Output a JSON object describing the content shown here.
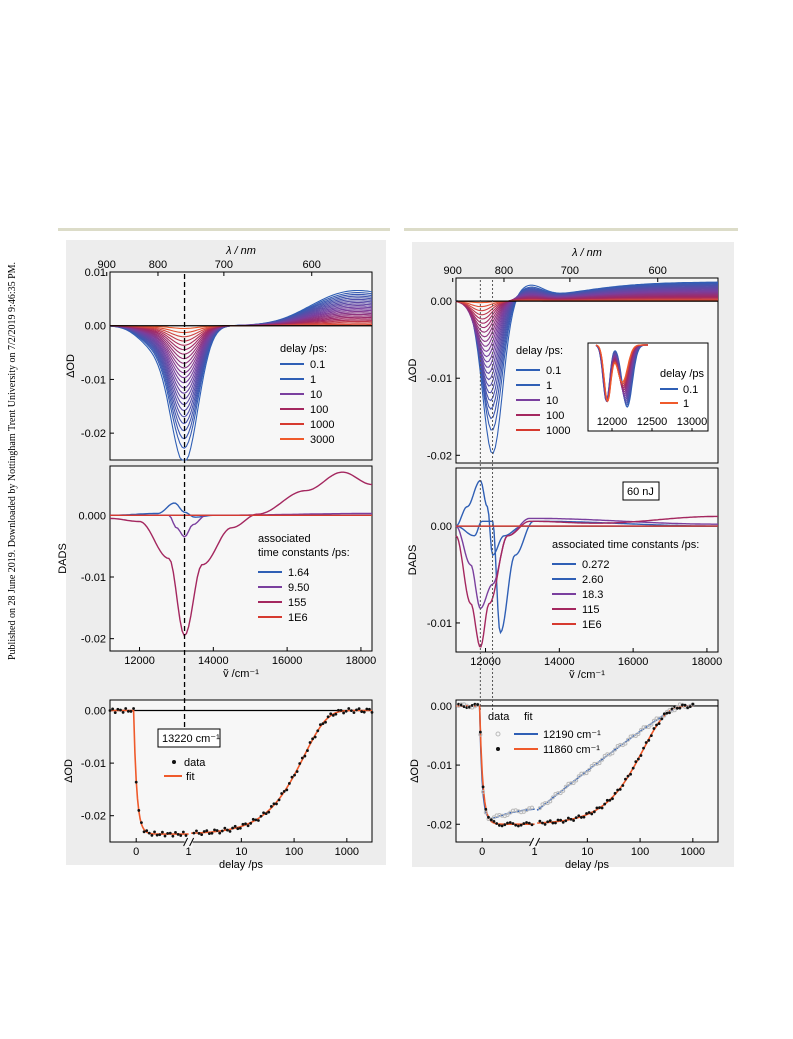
{
  "side_note": "Published on 28 June 2019. Downloaded by Nottingham Trent University on 7/2/2019 9:46:35 PM.",
  "colors": {
    "blue": "#2f5fb5",
    "purple": "#7a3f9e",
    "magenta": "#a4275f",
    "red": "#d63a2f",
    "orange": "#ef5a2b",
    "black": "#111111",
    "grey_data": "#bbbbbb",
    "panel_bg": "#ededed",
    "rule": "#dcdcc8"
  },
  "chart_data": [
    {
      "id": "left-tas",
      "type": "line",
      "top_axis_label": "λ / nm",
      "top_ticks": [
        "900",
        "800",
        "700",
        "600"
      ],
      "ylabel": "ΔOD",
      "ylim": [
        -0.025,
        0.01
      ],
      "yticks": [
        "0.01",
        "0.00",
        "-0.01",
        "-0.02"
      ],
      "xlim": [
        11200,
        18300
      ],
      "legend_title": "delay /ps:",
      "legend": [
        "0.1",
        "1",
        "10",
        "100",
        "1000",
        "3000"
      ],
      "legend_colors": [
        "blue",
        "blue",
        "purple",
        "magenta",
        "red",
        "orange"
      ],
      "dashed_marker_x": 13220
    },
    {
      "id": "left-dads",
      "type": "line",
      "ylabel": "DADS",
      "xlabel": "ṽ /cm⁻¹",
      "xticks": [
        "12000",
        "14000",
        "16000",
        "18000"
      ],
      "yticks": [
        "0.000",
        "-0.01",
        "-0.02"
      ],
      "ylim": [
        -0.022,
        0.008
      ],
      "xlim": [
        11200,
        18300
      ],
      "legend_title": "associated",
      "legend_title_2": "time constants /ps:",
      "legend": [
        "1.64",
        "9.50",
        "155",
        "1E6"
      ],
      "legend_colors": [
        "blue",
        "purple",
        "magenta",
        "red"
      ],
      "series": [
        {
          "name": "1.64",
          "x": [
            11200,
            12500,
            12950,
            13220,
            13500,
            14000,
            18300
          ],
          "values": [
            0,
            0.0003,
            0.002,
            0.0005,
            -0.0003,
            0,
            0
          ]
        },
        {
          "name": "9.50",
          "x": [
            11200,
            12800,
            13000,
            13220,
            13450,
            13800,
            18300
          ],
          "values": [
            0,
            0,
            -0.002,
            -0.0035,
            -0.0015,
            0,
            0.0003
          ]
        },
        {
          "name": "155",
          "x": [
            11200,
            12000,
            12800,
            13220,
            13700,
            14500,
            15200,
            16500,
            17500,
            18300
          ],
          "values": [
            -0.0005,
            -0.001,
            -0.007,
            -0.0195,
            -0.008,
            -0.002,
            0.0002,
            0.004,
            0.007,
            0.005
          ]
        },
        {
          "name": "1E6",
          "x": [
            11200,
            18300
          ],
          "values": [
            0,
            0
          ]
        }
      ]
    },
    {
      "id": "left-kinetics",
      "type": "line",
      "ylabel": "ΔOD",
      "xlabel": "delay /ps",
      "xticks_linear": [
        "0",
        "1"
      ],
      "xticks_log": [
        "10",
        "100",
        "1000"
      ],
      "yticks": [
        "0.00",
        "-0.01",
        "-0.02"
      ],
      "ylim": [
        -0.025,
        0.002
      ],
      "annotation": "13220 cm⁻¹",
      "legend": [
        "data",
        "fit"
      ]
    },
    {
      "id": "right-tas",
      "type": "line",
      "top_axis_label": "λ / nm",
      "top_ticks": [
        "900",
        "800",
        "700",
        "600"
      ],
      "ylabel": "ΔOD",
      "yticks": [
        "0.00",
        "-0.01",
        "-0.02"
      ],
      "ylim": [
        -0.021,
        0.003
      ],
      "xlim": [
        11200,
        18300
      ],
      "legend_title": "delay /ps:",
      "legend": [
        "0.1",
        "1",
        "10",
        "100",
        "1000"
      ],
      "legend_colors": [
        "blue",
        "blue",
        "purple",
        "magenta",
        "red"
      ],
      "inset": {
        "legend_title": "delay /ps",
        "legend": [
          "0.1",
          "1"
        ],
        "xticks": [
          "12000",
          "12500",
          "13000"
        ]
      }
    },
    {
      "id": "right-dads",
      "type": "line",
      "ylabel": "DADS",
      "xlabel": "ṽ /cm⁻¹",
      "xticks": [
        "12000",
        "14000",
        "16000",
        "18000"
      ],
      "yticks": [
        "0.00",
        "-0.01"
      ],
      "ylim": [
        -0.013,
        0.006
      ],
      "xlim": [
        11200,
        18300
      ],
      "annotation": "60 nJ",
      "legend_title": "associated time constants /ps:",
      "legend": [
        "0.272",
        "2.60",
        "18.3",
        "115",
        "1E6"
      ],
      "legend_colors": [
        "blue",
        "blue",
        "purple",
        "magenta",
        "red"
      ],
      "series": [
        {
          "name": "0.272",
          "x": [
            11200,
            11500,
            11860,
            12050,
            12190,
            12500,
            13000,
            18300
          ],
          "values": [
            0,
            0.002,
            0.0047,
            0.002,
            -0.003,
            -0.001,
            0,
            0
          ]
        },
        {
          "name": "2.60",
          "x": [
            11200,
            11700,
            11900,
            12190,
            12400,
            12800,
            13300,
            18300
          ],
          "values": [
            0,
            -0.001,
            0.0005,
            0.0005,
            -0.011,
            -0.003,
            0.0005,
            0
          ]
        },
        {
          "name": "18.3",
          "x": [
            11200,
            11600,
            11860,
            12190,
            12600,
            13200,
            18300
          ],
          "values": [
            0,
            -0.004,
            -0.0085,
            -0.006,
            -0.001,
            0.0008,
            0.0002
          ]
        },
        {
          "name": "115",
          "x": [
            11200,
            11600,
            11860,
            12100,
            12600,
            13200,
            15000,
            18300
          ],
          "values": [
            -0.001,
            -0.008,
            -0.0125,
            -0.008,
            -0.001,
            0.0005,
            0.0003,
            0.001
          ]
        },
        {
          "name": "1E6",
          "x": [
            11200,
            18300
          ],
          "values": [
            0,
            0
          ]
        }
      ]
    },
    {
      "id": "right-kinetics",
      "type": "line",
      "ylabel": "ΔOD",
      "xlabel": "delay /ps",
      "xticks_linear": [
        "0",
        "1"
      ],
      "xticks_log": [
        "10",
        "100",
        "1000"
      ],
      "yticks": [
        "0.00",
        "-0.01",
        "-0.02"
      ],
      "ylim": [
        -0.023,
        0.001
      ],
      "legend_header_data": "data",
      "legend_header_fit": "fit",
      "legend": [
        "12190 cm⁻¹",
        "11860 cm⁻¹"
      ],
      "legend_colors": [
        "blue",
        "orange"
      ]
    }
  ]
}
